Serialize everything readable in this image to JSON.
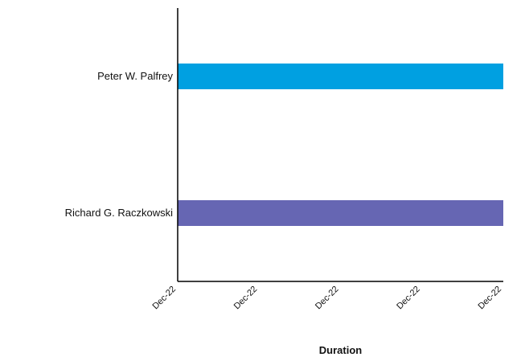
{
  "chart_data": {
    "type": "bar",
    "orientation": "horizontal",
    "title": "",
    "xlabel": "Duration",
    "ylabel": "",
    "categories": [
      "Peter W. Palfrey",
      "Richard G. Raczkowski"
    ],
    "values": [
      1,
      1
    ],
    "bar_colors": [
      "#00a0e1",
      "#6666b3"
    ],
    "x_tick_labels": [
      "Dec-22",
      "Dec-22",
      "Dec-22",
      "Dec-22",
      "Dec-22"
    ],
    "xlim": [
      0,
      1
    ],
    "grid": false,
    "legend": "none"
  }
}
